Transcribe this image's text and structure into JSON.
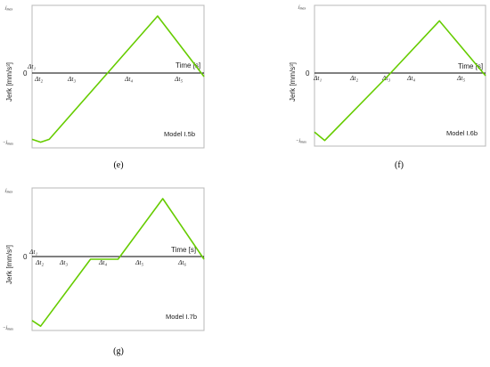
{
  "colors": {
    "series": "#66cc00",
    "frame": "#b8b8b8",
    "axis": "#000000",
    "text": "#222222"
  },
  "chart_data": [
    {
      "type": "line",
      "model_label": "Model I.5b",
      "caption": "(e)",
      "xlabel": "Time [s]",
      "ylabel": "Jerk [mm/s³]",
      "y_ticks": {
        "top": "jmax",
        "zero": "0",
        "bottom": "−jmax"
      },
      "interval_labels": [
        "Δt₁",
        "Δt₂",
        "Δt₃",
        "Δt₄",
        "Δt₅"
      ],
      "series": [
        {
          "points": [
            [
              0,
              -0.88
            ],
            [
              0.05,
              -0.92
            ],
            [
              0.1,
              -0.88
            ],
            [
              0.73,
              0.85
            ],
            [
              1,
              0
            ]
          ]
        }
      ],
      "ylim": [
        -1,
        1
      ],
      "xlim": [
        0,
        1
      ],
      "legend": "none",
      "grid": false
    },
    {
      "type": "line",
      "model_label": "Model I.6b",
      "caption": "(f)",
      "xlabel": "Time [s]",
      "ylabel": "Jerk [mm/s³]",
      "y_ticks": {
        "top": "jmax",
        "zero": "0",
        "bottom": "−jmax"
      },
      "interval_labels": [
        "Δt₁",
        "Δt₂",
        "Δt₃",
        "Δt₄",
        "Δt₅"
      ],
      "series": [
        {
          "points": [
            [
              0,
              -0.8
            ],
            [
              0.06,
              -0.92
            ],
            [
              0.43,
              0
            ],
            [
              0.73,
              0.78
            ],
            [
              1,
              0
            ]
          ]
        }
      ],
      "ylim": [
        -1,
        1
      ],
      "xlim": [
        0,
        1
      ],
      "legend": "none",
      "grid": false
    },
    {
      "type": "line",
      "model_label": "Model I.7b",
      "caption": "(g)",
      "xlabel": "Time [s]",
      "ylabel": "Jerk [mm/s³]",
      "y_ticks": {
        "top": "jmax",
        "zero": "0",
        "bottom": "−jmax"
      },
      "interval_labels": [
        "Δt₁",
        "Δt₂",
        "Δt₃",
        "Δt₄",
        "Δt₅",
        "Δt₆"
      ],
      "series": [
        {
          "points": [
            [
              0,
              -0.86
            ],
            [
              0.05,
              -0.94
            ],
            [
              0.34,
              0
            ],
            [
              0.5,
              0
            ],
            [
              0.76,
              0.85
            ],
            [
              1,
              0
            ]
          ]
        }
      ],
      "ylim": [
        -1,
        1
      ],
      "xlim": [
        0,
        1
      ],
      "legend": "none",
      "grid": false
    }
  ]
}
